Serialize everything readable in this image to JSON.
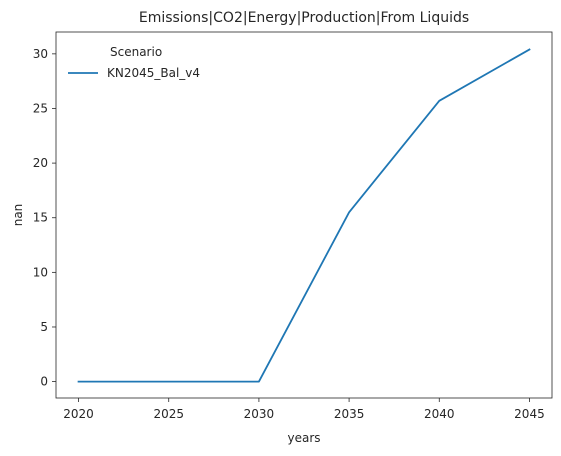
{
  "chart_data": {
    "type": "line",
    "title": "Emissions|CO2|Energy|Production|From Liquids",
    "xlabel": "years",
    "ylabel": "nan",
    "x": [
      2020,
      2025,
      2030,
      2035,
      2040,
      2045
    ],
    "series": [
      {
        "name": "KN2045_Bal_v4",
        "color": "#1f77b4",
        "values": [
          0,
          0,
          0,
          15.5,
          25.7,
          30.4
        ]
      }
    ],
    "xticks": [
      "2020",
      "2025",
      "2030",
      "2035",
      "2040",
      "2045"
    ],
    "yticks": [
      "0",
      "5",
      "10",
      "15",
      "20",
      "25",
      "30"
    ],
    "xlim": [
      2018.75,
      2046.25
    ],
    "ylim": [
      -1.5,
      32.0
    ],
    "grid": false,
    "legend": {
      "title": "Scenario",
      "placement": "top-left"
    }
  }
}
